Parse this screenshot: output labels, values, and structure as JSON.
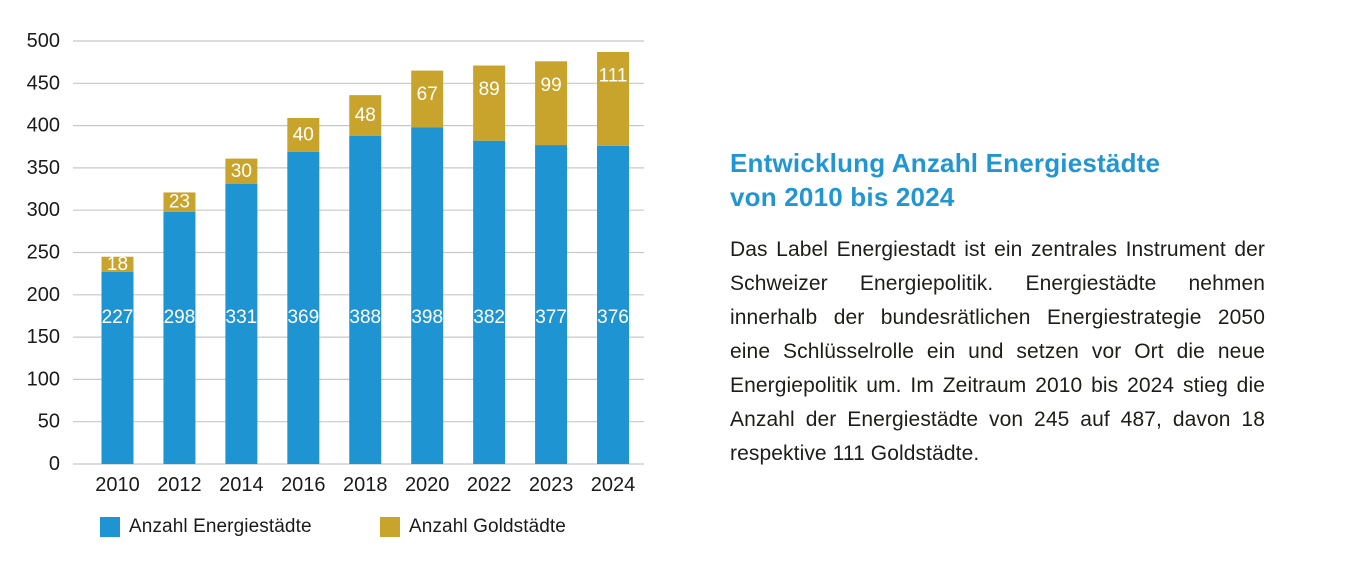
{
  "colors": {
    "energiestadt_blue": "#1e95d2",
    "gold": "#c9a42c",
    "title_blue": "#2196d3",
    "body_text": "#1d1d1b",
    "axis_text": "#1a1a1a",
    "gridline": "#c8c8c8",
    "bar_label": "#ffffff",
    "background": "#ffffff"
  },
  "chart_data": {
    "type": "bar",
    "stacked": true,
    "categories": [
      "2010",
      "2012",
      "2014",
      "2016",
      "2018",
      "2020",
      "2022",
      "2023",
      "2024"
    ],
    "series": [
      {
        "name": "Anzahl Energiestädte",
        "color": "#1e95d2",
        "values": [
          227,
          298,
          331,
          369,
          388,
          398,
          382,
          377,
          376
        ]
      },
      {
        "name": "Anzahl Goldstädte",
        "color": "#c9a42c",
        "values": [
          18,
          23,
          30,
          40,
          48,
          67,
          89,
          99,
          111
        ]
      }
    ],
    "ylim": [
      0,
      500
    ],
    "yticks": [
      0,
      50,
      100,
      150,
      200,
      250,
      300,
      350,
      400,
      450,
      500
    ],
    "grid": true,
    "bar_value_labels": true,
    "legend_position": "bottom"
  },
  "legend": {
    "items": [
      {
        "label": "Anzahl Energiestädte",
        "color": "#1e95d2"
      },
      {
        "label": "Anzahl Goldstädte",
        "color": "#c9a42c"
      }
    ]
  },
  "article": {
    "title": "Entwicklung Anzahl Energiestädte\nvon 2010 bis 2024",
    "body": "Das Label Energiestadt ist ein zentrales Instrument der Schweizer Energiepolitik. Energiestädte nehmen innerhalb der bundesrätlichen Energiestrategie 2050 eine Schlüsselrolle ein und setzen vor Ort die neue Energiepolitik um. Im Zeitraum 2010 bis 2024 stieg die Anzahl der Energiestädte von 245 auf 487, davon 18 respektive 111 Goldstädte."
  }
}
